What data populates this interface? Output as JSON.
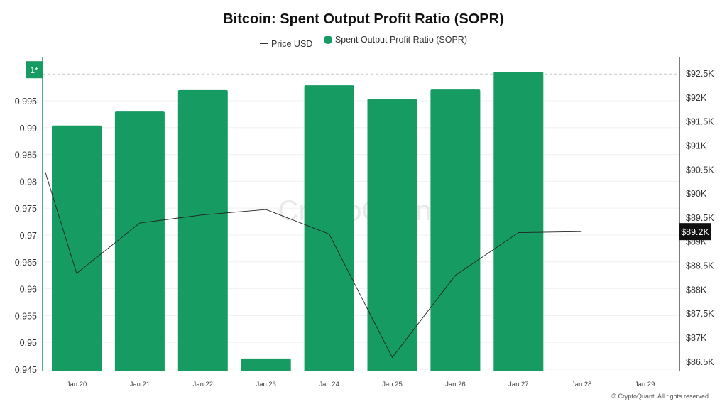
{
  "chart_data": {
    "type": "bar",
    "title": "Bitcoin: Spent Output Profit Ratio (SOPR)",
    "legend": [
      {
        "name": "Price USD",
        "kind": "line",
        "color": "#333333"
      },
      {
        "name": "Spent Output Profit Ratio (SOPR)",
        "kind": "bar",
        "color": "#169b62"
      }
    ],
    "legend_position": "top-center",
    "categories": [
      "Jan 20",
      "Jan 21",
      "Jan 22",
      "Jan 23",
      "Jan 24",
      "Jan 25",
      "Jan 26",
      "Jan 27",
      "Jan 28",
      "Jan 29"
    ],
    "series": [
      {
        "name": "Spent Output Profit Ratio (SOPR)",
        "type": "bar",
        "axis": "left",
        "values": [
          0.9904,
          0.993,
          0.997,
          0.947,
          0.9979,
          0.9954,
          0.9971,
          1.0004,
          null,
          null
        ]
      },
      {
        "name": "Price USD",
        "type": "line",
        "axis": "right",
        "x": [
          19.5,
          20,
          21,
          22,
          23,
          24,
          25,
          26,
          27,
          28
        ],
        "values": [
          90.45,
          88.33,
          89.38,
          89.55,
          89.66,
          89.15,
          86.58,
          88.29,
          89.18,
          89.2
        ]
      }
    ],
    "left_axis": {
      "ticks": [
        "0.945",
        "0.95",
        "0.955",
        "0.96",
        "0.965",
        "0.97",
        "0.975",
        "0.98",
        "0.985",
        "0.99",
        "0.995"
      ],
      "tick_values": [
        0.945,
        0.95,
        0.955,
        0.96,
        0.965,
        0.97,
        0.975,
        0.98,
        0.985,
        0.99,
        0.995
      ],
      "ylim": [
        0.9446,
        1.0032
      ],
      "reference_value": 1,
      "reference_label": "1*"
    },
    "right_axis": {
      "ticks": [
        "$86.5K",
        "$87K",
        "$87.5K",
        "$88K",
        "$88.5K",
        "$89K",
        "$89.5K",
        "$90K",
        "$90.5K",
        "$91K",
        "$91.5K",
        "$92K",
        "$92.5K"
      ],
      "tick_values": [
        86.5,
        87,
        87.5,
        88,
        88.5,
        89,
        89.5,
        90,
        90.5,
        91,
        91.5,
        92,
        92.5
      ],
      "ylim": [
        86.29,
        92.84
      ],
      "current_label": "$89.2K",
      "current_value": 89.2
    },
    "xlim": [
      19.46,
      29.55
    ],
    "grid": true
  },
  "watermark": "CryptoQuant",
  "footer": "© CryptoQuant. All rights reserved"
}
